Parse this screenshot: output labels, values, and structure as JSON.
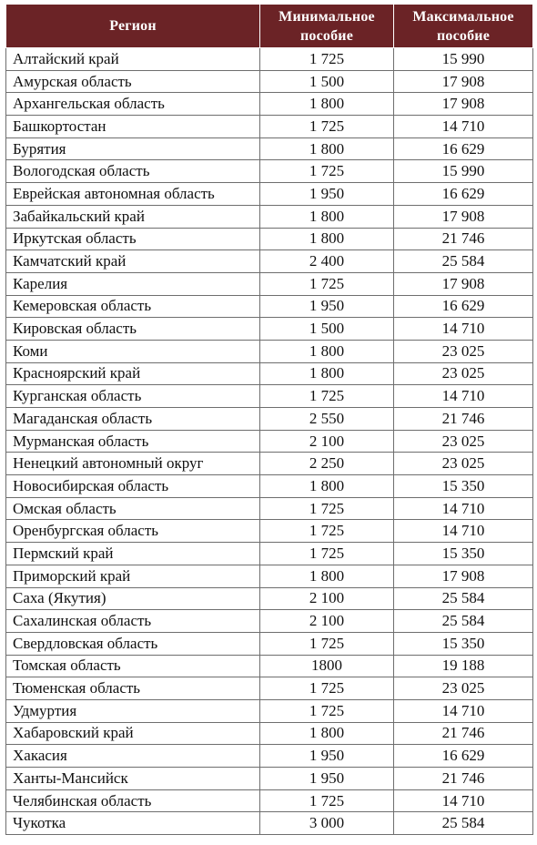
{
  "table": {
    "headers": {
      "region": "Регион",
      "min": [
        "Минимальное",
        "пособие"
      ],
      "max": [
        "Максимальное",
        "пособие"
      ]
    },
    "rows": [
      {
        "region": "Алтайский край",
        "min": "1 725",
        "max": "15 990"
      },
      {
        "region": "Амурская область",
        "min": "1 500",
        "max": "17 908"
      },
      {
        "region": "Архангельская область",
        "min": "1 800",
        "max": "17 908"
      },
      {
        "region": "Башкортостан",
        "min": "1 725",
        "max": "14 710"
      },
      {
        "region": "Бурятия",
        "min": "1 800",
        "max": "16 629"
      },
      {
        "region": "Вологодская область",
        "min": "1 725",
        "max": "15 990"
      },
      {
        "region": "Еврейская автономная область",
        "min": "1 950",
        "max": "16 629"
      },
      {
        "region": "Забайкальский край",
        "min": "1 800",
        "max": "17 908"
      },
      {
        "region": "Иркутская область",
        "min": "1 800",
        "max": "21 746"
      },
      {
        "region": "Камчатский край",
        "min": "2 400",
        "max": "25 584"
      },
      {
        "region": "Карелия",
        "min": "1 725",
        "max": "17 908"
      },
      {
        "region": "Кемеровская область",
        "min": "1 950",
        "max": "16 629"
      },
      {
        "region": "Кировская область",
        "min": "1 500",
        "max": "14 710"
      },
      {
        "region": "Коми",
        "min": "1 800",
        "max": "23 025"
      },
      {
        "region": "Красноярский край",
        "min": "1 800",
        "max": "23 025"
      },
      {
        "region": "Курганская область",
        "min": "1 725",
        "max": "14 710"
      },
      {
        "region": "Магаданская область",
        "min": "2 550",
        "max": "21 746"
      },
      {
        "region": "Мурманская область",
        "min": "2 100",
        "max": "23 025"
      },
      {
        "region": "Ненецкий автономный округ",
        "min": "2 250",
        "max": "23 025"
      },
      {
        "region": "Новосибирская область",
        "min": "1 800",
        "max": "15 350"
      },
      {
        "region": "Омская область",
        "min": "1 725",
        "max": "14 710"
      },
      {
        "region": "Оренбургская область",
        "min": "1 725",
        "max": "14 710"
      },
      {
        "region": "Пермский край",
        "min": "1 725",
        "max": "15 350"
      },
      {
        "region": "Приморский край",
        "min": "1 800",
        "max": "17 908"
      },
      {
        "region": "Саха (Якутия)",
        "min": "2 100",
        "max": "25 584"
      },
      {
        "region": "Сахалинская область",
        "min": "2 100",
        "max": "25 584"
      },
      {
        "region": "Свердловская область",
        "min": "1 725",
        "max": "15 350"
      },
      {
        "region": "Томская область",
        "min": "1800",
        "max": "19 188"
      },
      {
        "region": "Тюменская область",
        "min": "1 725",
        "max": "23 025"
      },
      {
        "region": "Удмуртия",
        "min": "1 725",
        "max": "14 710"
      },
      {
        "region": "Хабаровский край",
        "min": "1 800",
        "max": "21 746"
      },
      {
        "region": "Хакасия",
        "min": "1 950",
        "max": "16 629"
      },
      {
        "region": "Ханты-Мансийск",
        "min": "1 950",
        "max": "21 746"
      },
      {
        "region": "Челябинская область",
        "min": "1 725",
        "max": "14 710"
      },
      {
        "region": "Чукотка",
        "min": "3 000",
        "max": "25 584"
      }
    ]
  },
  "colors": {
    "header_bg": "#6b2326",
    "header_text": "#ffffff",
    "border": "#6e6e6e"
  }
}
